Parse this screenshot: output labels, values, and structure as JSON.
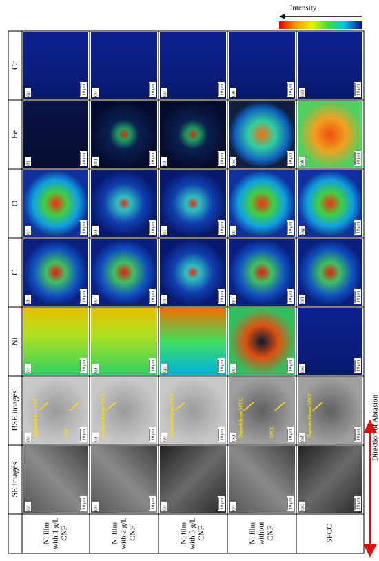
{
  "legend": {
    "label": "Intensity"
  },
  "header": {
    "columns": [
      "SE images",
      "BSE images",
      "Ni",
      "C",
      "O",
      "Fe",
      "Cr"
    ]
  },
  "scale_bar": "10 μm",
  "direction": "Direction of Abrasion",
  "rows": [
    {
      "label": [
        "Ni film",
        "with 1 g/L",
        "CNF"
      ],
      "panels": [
        "(a)",
        "(b)",
        "(c)",
        "(d)",
        "(e)",
        "(f)",
        "(g)"
      ],
      "annotations": [
        "Agglomerated CNF",
        "CNF"
      ]
    },
    {
      "label": [
        "Ni film",
        "with 2 g/L",
        "CNF"
      ],
      "panels": [
        "(h)",
        "(i)",
        "(j)",
        "(k)",
        "(l)",
        "(m)",
        "(n)"
      ],
      "annotations": [
        "Deposited from SPCC"
      ]
    },
    {
      "label": [
        "Ni film",
        "with 3 g/L",
        "CNF"
      ],
      "panels": [
        "(o)",
        "(p)",
        "(q)",
        "(r)",
        "(s)",
        "(t)",
        "(u)"
      ],
      "annotations": [
        "Deposited from SPCC"
      ]
    },
    {
      "label": [
        "Ni film",
        "without",
        "CNF"
      ],
      "panels": [
        "(v)",
        "(w)",
        "(x)",
        "(y)",
        "(z)",
        "(aa)",
        "(ab)"
      ],
      "annotations": [
        "Deposit from SPCC",
        "SPCC"
      ]
    },
    {
      "label": [
        "SPCC"
      ],
      "panels": [
        "(ac)",
        "(ad)",
        "(ae)",
        "(af)",
        "(ag)",
        "(ah)",
        "(ai)"
      ],
      "annotations": [
        "Deposited from SPCC"
      ]
    }
  ]
}
